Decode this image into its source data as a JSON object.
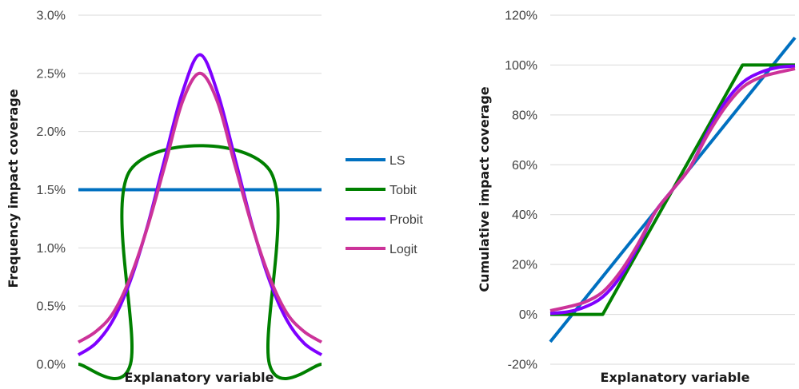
{
  "chart_data": [
    {
      "type": "line",
      "xlabel": "Explanatory variable",
      "ylabel": "Frequency impact coverage",
      "ylim": [
        0,
        0.03
      ],
      "yticks": [
        "0.0%",
        "0.5%",
        "1.0%",
        "1.5%",
        "2.0%",
        "2.5%",
        "3.0%"
      ],
      "xlim": [
        -3.5,
        3.5
      ],
      "grid": "horizontal",
      "legend": "right",
      "series": [
        {
          "name": "LS",
          "color": "#0070c0",
          "x": [
            -3.5,
            3.5
          ],
          "y": [
            0.015,
            0.015
          ]
        },
        {
          "name": "Tobit",
          "color": "#008000",
          "x": [
            -3.5,
            -2.0,
            -2.0,
            2.0,
            2.0,
            3.5
          ],
          "y": [
            0,
            0,
            0.0167,
            0.0167,
            0,
            0
          ]
        },
        {
          "name": "Probit",
          "color": "#7f00ff",
          "x": [
            -3.5,
            -3.0,
            -2.5,
            -2.0,
            -1.5,
            -1.0,
            -0.5,
            0,
            0.5,
            1.0,
            1.5,
            2.0,
            2.5,
            3.0,
            3.5
          ],
          "y": [
            0.0008,
            0.0018,
            0.0038,
            0.0072,
            0.012,
            0.0178,
            0.0234,
            0.0266,
            0.0234,
            0.0178,
            0.012,
            0.0072,
            0.0038,
            0.0018,
            0.0008
          ]
        },
        {
          "name": "Logit",
          "color": "#cc3399",
          "x": [
            -3.5,
            -3.0,
            -2.5,
            -2.0,
            -1.5,
            -1.0,
            -0.5,
            0,
            0.5,
            1.0,
            1.5,
            2.0,
            2.5,
            3.0,
            3.5
          ],
          "y": [
            0.0019,
            0.0028,
            0.0044,
            0.0075,
            0.0119,
            0.0172,
            0.0226,
            0.025,
            0.0226,
            0.0172,
            0.0119,
            0.0075,
            0.0044,
            0.0028,
            0.0019
          ]
        }
      ]
    },
    {
      "type": "line",
      "xlabel": "Explanatory variable",
      "ylabel": "Cumulative impact coverage",
      "ylim": [
        -0.2,
        1.2
      ],
      "yticks": [
        "-20%",
        "0%",
        "20%",
        "40%",
        "60%",
        "80%",
        "100%",
        "120%"
      ],
      "xlim": [
        -3.5,
        3.5
      ],
      "grid": "horizontal",
      "series": [
        {
          "name": "LS",
          "color": "#0070c0",
          "x": [
            -3.5,
            3.5
          ],
          "y": [
            -0.11,
            1.11
          ]
        },
        {
          "name": "Tobit",
          "color": "#008000",
          "x": [
            -3.5,
            -2.0,
            2.0,
            3.5
          ],
          "y": [
            0,
            0,
            1.0,
            1.0
          ]
        },
        {
          "name": "Probit",
          "color": "#7f00ff",
          "x": [
            -3.5,
            -3.0,
            -2.5,
            -2.0,
            -1.5,
            -1.0,
            -0.5,
            0,
            0.5,
            1.0,
            1.5,
            2.0,
            2.5,
            3.0,
            3.5
          ],
          "y": [
            0.004,
            0.01,
            0.03,
            0.07,
            0.15,
            0.27,
            0.41,
            0.5,
            0.59,
            0.73,
            0.85,
            0.93,
            0.97,
            0.99,
            0.996
          ]
        },
        {
          "name": "Logit",
          "color": "#cc3399",
          "x": [
            -3.5,
            -3.0,
            -2.5,
            -2.0,
            -1.5,
            -1.0,
            -0.5,
            0,
            0.5,
            1.0,
            1.5,
            2.0,
            2.5,
            3.0,
            3.5
          ],
          "y": [
            0.015,
            0.03,
            0.05,
            0.09,
            0.17,
            0.28,
            0.41,
            0.5,
            0.59,
            0.72,
            0.83,
            0.91,
            0.95,
            0.97,
            0.985
          ]
        }
      ]
    }
  ]
}
